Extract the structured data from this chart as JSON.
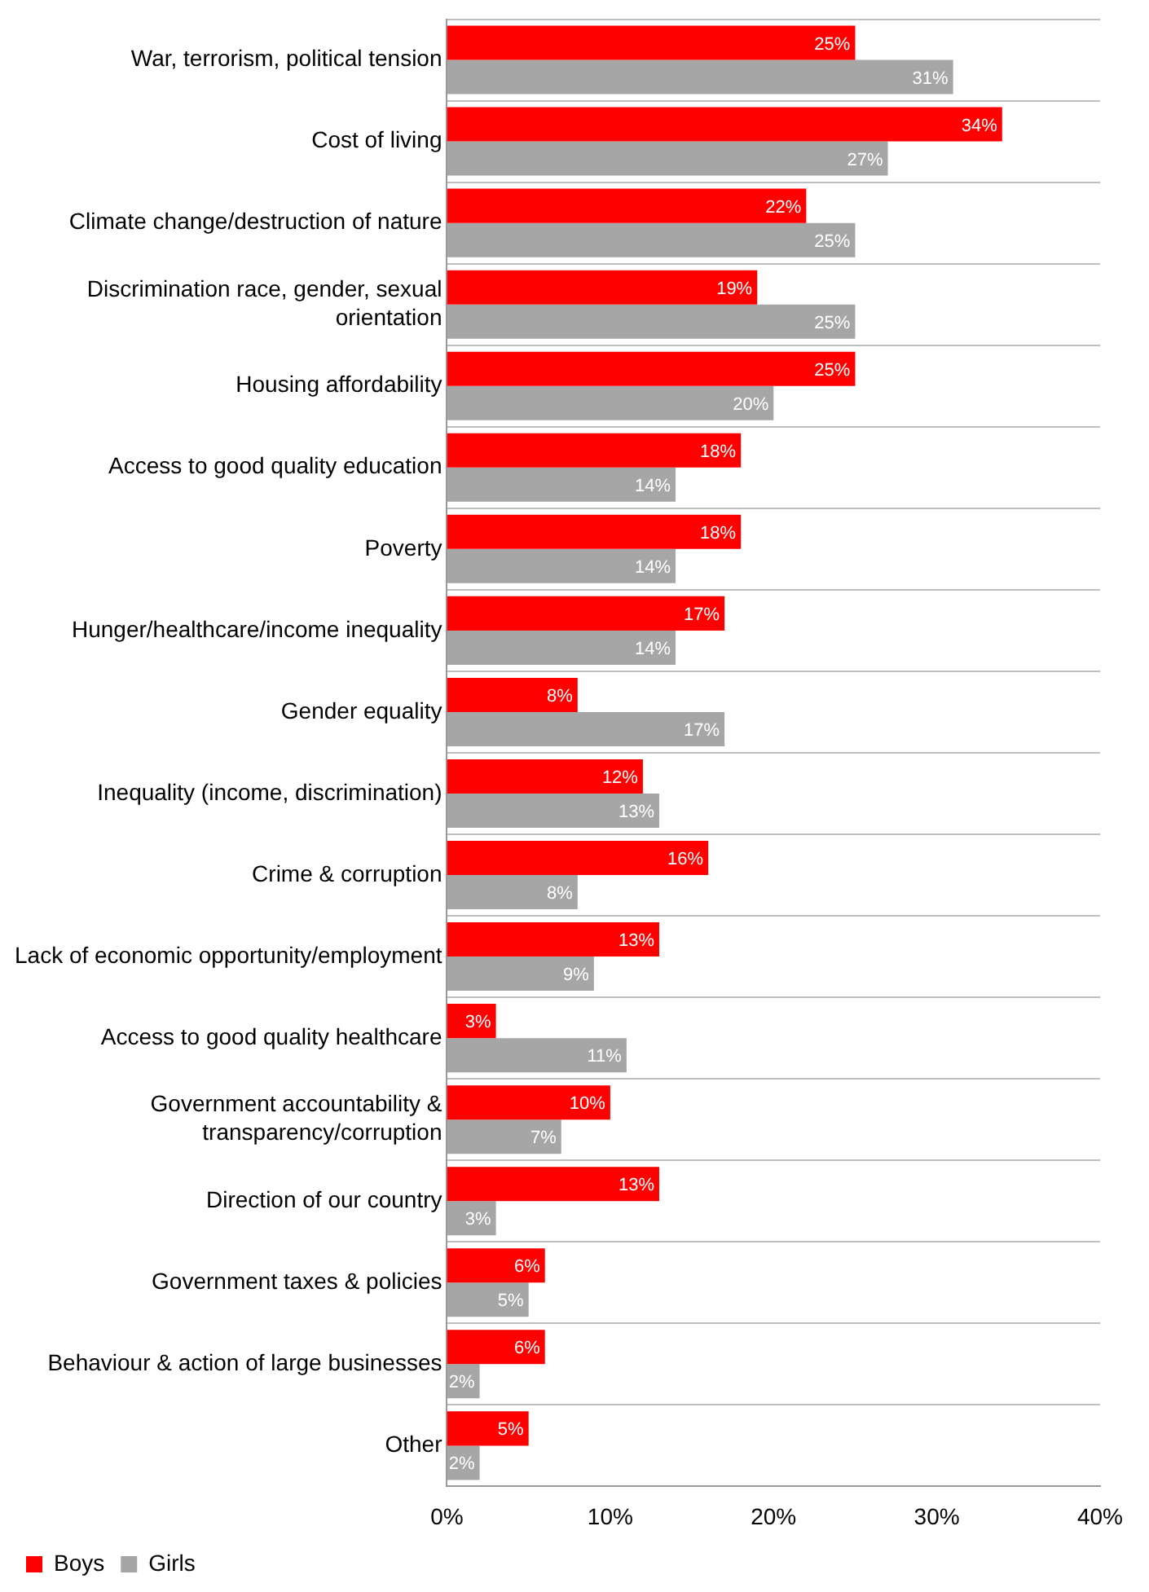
{
  "chart_data": {
    "type": "bar",
    "orientation": "horizontal",
    "categories": [
      "War, terrorism, political tension",
      "Cost of living",
      "Climate change/destruction of nature",
      "Discrimination race, gender, sexual orientation",
      "Housing affordability",
      "Access to good quality education",
      "Poverty",
      "Hunger/healthcare/income inequality",
      "Gender equality",
      "Inequality (income, discrimination)",
      "Crime & corruption",
      "Lack of economic opportunity/employment",
      "Access to good quality healthcare",
      "Government accountability & transparency/corruption",
      "Direction of our country",
      "Government taxes & policies",
      "Behaviour & action of large businesses",
      "Other"
    ],
    "series": [
      {
        "name": "Boys",
        "color": "#ff0000",
        "values": [
          25,
          34,
          22,
          19,
          25,
          18,
          18,
          17,
          8,
          12,
          16,
          13,
          3,
          10,
          13,
          6,
          6,
          5
        ],
        "value_labels": [
          "25%",
          "34%",
          "22%",
          "19%",
          "25%",
          "18%",
          "18%",
          "17%",
          "8%",
          "12%",
          "16%",
          "13%",
          "3%",
          "10%",
          "13%",
          "6%",
          "6%",
          "5%"
        ]
      },
      {
        "name": "Girls",
        "color": "#a6a6a6",
        "values": [
          31,
          27,
          25,
          25,
          20,
          14,
          14,
          14,
          17,
          13,
          8,
          9,
          11,
          7,
          3,
          5,
          2,
          2
        ],
        "value_labels": [
          "31%",
          "27%",
          "25%",
          "25%",
          "20%",
          "14%",
          "14%",
          "14%",
          "17%",
          "13%",
          "8%",
          "9%",
          "11%",
          "7%",
          "3%",
          "5%",
          "2%",
          "2%"
        ]
      }
    ],
    "xlim": [
      0,
      40
    ],
    "xticks": [
      {
        "value": 0,
        "label": "0%"
      },
      {
        "value": 10,
        "label": "10%"
      },
      {
        "value": 20,
        "label": "20%"
      },
      {
        "value": 30,
        "label": "30%"
      },
      {
        "value": 40,
        "label": "40%"
      }
    ],
    "grid": "y",
    "legend": "bottom left"
  }
}
